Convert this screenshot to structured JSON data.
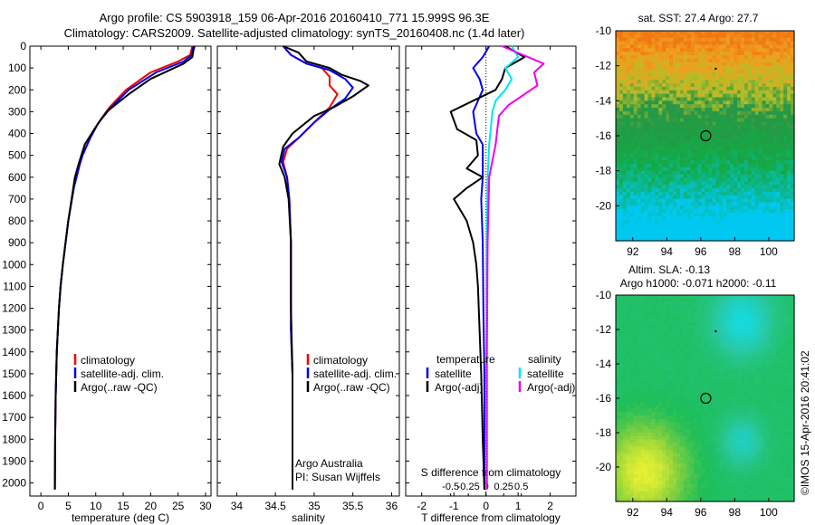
{
  "header": {
    "title_line1": "Argo profile: CS 5903918_159 06-Apr-2016 20160410_771 15.999S 96.3E",
    "title_line2": "Climatology: CARS2009. Satellite-adjusted climatology: synTS_20160408.nc (1.4d later)"
  },
  "colors": {
    "climatology": "#ee0000",
    "satellite": "#0000ee",
    "argo": "#000000",
    "salinity_satellite": "#00e5ee",
    "salinity_argo": "#ee00ee"
  },
  "chart_data": [
    {
      "type": "line",
      "panel": "temperature",
      "xlabel": "temperature (deg C)",
      "xlim": [
        -2,
        31
      ],
      "xticks": [
        0,
        5,
        10,
        15,
        20,
        25,
        30
      ],
      "xtick_labels": [
        "0",
        "5",
        "10",
        "15",
        "20",
        "25",
        "30"
      ],
      "ylim": [
        2060,
        0
      ],
      "yticks": [
        0,
        100,
        200,
        300,
        400,
        500,
        600,
        700,
        800,
        900,
        1000,
        1100,
        1200,
        1300,
        1400,
        1500,
        1600,
        1700,
        1800,
        1900,
        2000
      ],
      "ytick_labels": [
        "0",
        "100",
        "200",
        "300",
        "400",
        "500",
        "600",
        "700",
        "800",
        "900",
        "1000",
        "1100",
        "1200",
        "1300",
        "1400",
        "1500",
        "1600",
        "1700",
        "1800",
        "1900",
        "2000"
      ],
      "legend": [
        "climatology",
        "satellite-adj. clim.",
        "Argo(..raw -QC)"
      ],
      "series": [
        {
          "name": "climatology",
          "color": "#ee0000",
          "x": [
            27.6,
            27.2,
            25.0,
            20.0,
            15.5,
            12.5,
            10.5,
            9.0,
            7.5,
            7.0,
            6.0,
            5.0,
            4.5,
            4.0,
            3.6,
            3.3,
            3.1,
            2.9,
            2.8,
            2.7,
            2.6,
            2.55
          ],
          "y": [
            0,
            40,
            70,
            120,
            200,
            280,
            350,
            420,
            500,
            550,
            650,
            800,
            900,
            1000,
            1100,
            1200,
            1300,
            1400,
            1500,
            1600,
            1800,
            2030
          ]
        },
        {
          "name": "satellite-adj. clim.",
          "color": "#0000ee",
          "x": [
            27.8,
            27.5,
            26.0,
            21.0,
            16.0,
            12.8,
            10.5,
            9.0,
            7.6,
            7.0,
            6.0,
            5.0,
            4.5,
            4.0,
            3.6,
            3.3,
            3.1,
            2.9,
            2.8,
            2.7,
            2.6,
            2.55
          ],
          "y": [
            0,
            40,
            70,
            120,
            200,
            280,
            350,
            420,
            500,
            550,
            650,
            800,
            900,
            1000,
            1100,
            1200,
            1300,
            1400,
            1500,
            1600,
            1800,
            2030
          ]
        },
        {
          "name": "Argo(..raw -QC)",
          "color": "#000000",
          "x": [
            28.0,
            27.8,
            27.6,
            26.0,
            20.0,
            16.0,
            12.0,
            10.0,
            8.0,
            7.0,
            6.2,
            5.0,
            4.5,
            4.0,
            3.6,
            3.3,
            3.1,
            2.9,
            2.8,
            2.7,
            2.6,
            2.55
          ],
          "y": [
            0,
            20,
            50,
            80,
            150,
            220,
            300,
            370,
            450,
            530,
            600,
            800,
            900,
            1000,
            1100,
            1200,
            1300,
            1400,
            1500,
            1600,
            1800,
            2030
          ]
        }
      ]
    },
    {
      "type": "line",
      "panel": "salinity",
      "xlabel": "salinity",
      "xlim": [
        33.75,
        36.1
      ],
      "xticks": [
        34,
        34.5,
        35,
        35.5,
        36
      ],
      "xtick_labels": [
        "34",
        "34.5",
        "35",
        "35.5",
        "36"
      ],
      "ylim": [
        2060,
        0
      ],
      "legend": [
        "climatology",
        "satellite-adj. clim.",
        "Argo(..raw -QC)"
      ],
      "annotations": [
        "Argo Australia",
        "PI: Susan Wijffels"
      ],
      "series": [
        {
          "name": "climatology",
          "color": "#ee0000",
          "x": [
            34.6,
            34.7,
            34.9,
            35.1,
            35.2,
            35.2,
            35.3,
            35.2,
            35.0,
            34.8,
            34.65,
            34.6,
            34.65,
            34.68,
            34.7,
            34.7,
            34.7,
            34.72,
            34.72,
            34.72,
            34.72
          ],
          "y": [
            0,
            40,
            80,
            100,
            140,
            180,
            220,
            280,
            350,
            420,
            470,
            530,
            600,
            700,
            900,
            1100,
            1300,
            1500,
            1700,
            1900,
            2030
          ]
        },
        {
          "name": "satellite-adj. clim.",
          "color": "#0000ee",
          "x": [
            34.6,
            34.7,
            34.9,
            35.2,
            35.4,
            35.5,
            35.4,
            35.2,
            35.0,
            34.8,
            34.62,
            34.58,
            34.65,
            34.68,
            34.7,
            34.7,
            34.7,
            34.72,
            34.72,
            34.72,
            34.72
          ],
          "y": [
            0,
            40,
            80,
            110,
            150,
            190,
            240,
            290,
            350,
            420,
            470,
            530,
            600,
            700,
            900,
            1100,
            1300,
            1500,
            1700,
            1900,
            2030
          ]
        },
        {
          "name": "Argo(..raw -QC)",
          "color": "#000000",
          "x": [
            34.6,
            34.8,
            34.9,
            35.2,
            35.35,
            35.6,
            35.7,
            35.5,
            35.25,
            35.0,
            34.72,
            34.6,
            34.55,
            34.62,
            34.67,
            34.7,
            34.7,
            34.72,
            34.72,
            34.72,
            34.72
          ],
          "y": [
            0,
            30,
            70,
            100,
            130,
            160,
            180,
            230,
            280,
            320,
            400,
            460,
            540,
            600,
            700,
            900,
            1200,
            1500,
            1700,
            1900,
            2030
          ]
        }
      ]
    },
    {
      "type": "line",
      "panel": "differences",
      "xlabel": "T difference from climatology",
      "xlim": [
        -2.5,
        2.8
      ],
      "xticks": [
        -2,
        -1,
        0,
        1,
        2
      ],
      "xtick_labels": [
        "-2",
        "-1",
        "0",
        "1",
        "2"
      ],
      "top_label": "S difference from climatology",
      "top_ticks": [
        -0.5,
        -0.25,
        0,
        0.25,
        0.5
      ],
      "top_tick_labels": [
        "-0.5",
        "-0.25",
        "0",
        "0.25",
        "0.5"
      ],
      "ylim": [
        2060,
        0
      ],
      "legend_headers": [
        "temperature",
        "salinity"
      ],
      "legend": [
        "satellite",
        "Argo(-adj)",
        "satellite",
        "Argo(-adj)"
      ],
      "series": [
        {
          "name": "satellite",
          "color": "#0000ee",
          "x": [
            0.1,
            -0.1,
            -0.4,
            -0.2,
            -0.1,
            -0.4,
            -0.3,
            -0.1,
            -0.1,
            -0.15,
            -0.1,
            -0.08,
            -0.05,
            -0.05,
            -0.05
          ],
          "y": [
            0,
            50,
            100,
            150,
            200,
            300,
            400,
            450,
            600,
            700,
            900,
            1200,
            1500,
            1800,
            2030
          ]
        },
        {
          "name": "Argo(-adj)",
          "color": "#000000",
          "x": [
            0.6,
            1.2,
            0.6,
            0.5,
            0.3,
            -0.4,
            -1.1,
            -0.9,
            -0.3,
            -0.25,
            -0.6,
            -0.1,
            -0.6,
            -1.0,
            -0.6,
            -0.4,
            -0.3,
            -0.25,
            -0.2,
            -0.15,
            -0.1,
            -0.05
          ],
          "y": [
            0,
            50,
            100,
            150,
            200,
            250,
            300,
            380,
            430,
            500,
            560,
            600,
            650,
            700,
            800,
            900,
            1000,
            1100,
            1300,
            1500,
            1800,
            2030
          ]
        },
        {
          "name": "satellite",
          "color": "#00e5ee",
          "x": [
            0.8,
            1.0,
            0.6,
            0.8,
            0.6,
            0.3,
            0.2,
            0.1,
            0.05,
            0.02,
            0.02,
            0.02
          ],
          "y": [
            0,
            50,
            100,
            150,
            200,
            250,
            300,
            450,
            600,
            900,
            1400,
            2030
          ]
        },
        {
          "name": "Argo(-adj)",
          "color": "#ee00ee",
          "x": [
            0.5,
            1.8,
            1.5,
            1.6,
            1.1,
            0.7,
            0.4,
            0.3,
            0.1,
            0.05,
            0.03,
            0.03
          ],
          "y": [
            0,
            80,
            120,
            180,
            230,
            270,
            320,
            450,
            600,
            900,
            1400,
            2030
          ]
        }
      ]
    },
    {
      "type": "heatmap",
      "panel": "sst_map",
      "title": "sat. SST: 27.4  Argo: 27.7",
      "xlim": [
        91,
        101.5
      ],
      "xticks": [
        92,
        94,
        96,
        98,
        100
      ],
      "xtick_labels": [
        "92",
        "94",
        "96",
        "98",
        "100"
      ],
      "ylim": [
        -22,
        -10
      ],
      "yticks": [
        -20,
        -18,
        -16,
        -14,
        -12,
        -10
      ],
      "ytick_labels": [
        "-20",
        "-18",
        "-16",
        "-14",
        "-12",
        "-10"
      ],
      "marker": {
        "lon": 96.3,
        "lat": -16.0
      }
    },
    {
      "type": "heatmap",
      "panel": "sla_map",
      "title_line1": "Altim. SLA: -0.13",
      "title_line2": "Argo h1000: -0.071  h2000: -0.11",
      "xlim": [
        91,
        101.5
      ],
      "xticks": [
        92,
        94,
        96,
        98,
        100
      ],
      "xtick_labels": [
        "92",
        "94",
        "96",
        "98",
        "100"
      ],
      "ylim": [
        -22,
        -10
      ],
      "yticks": [
        -20,
        -18,
        -16,
        -14,
        -12,
        -10
      ],
      "ytick_labels": [
        "-20",
        "-18",
        "-16",
        "-14",
        "-12",
        "-10"
      ],
      "marker": {
        "lon": 96.3,
        "lat": -16.0
      }
    }
  ],
  "footer": {
    "credit": "©IMOS 15-Apr-2016 20:41:02"
  }
}
